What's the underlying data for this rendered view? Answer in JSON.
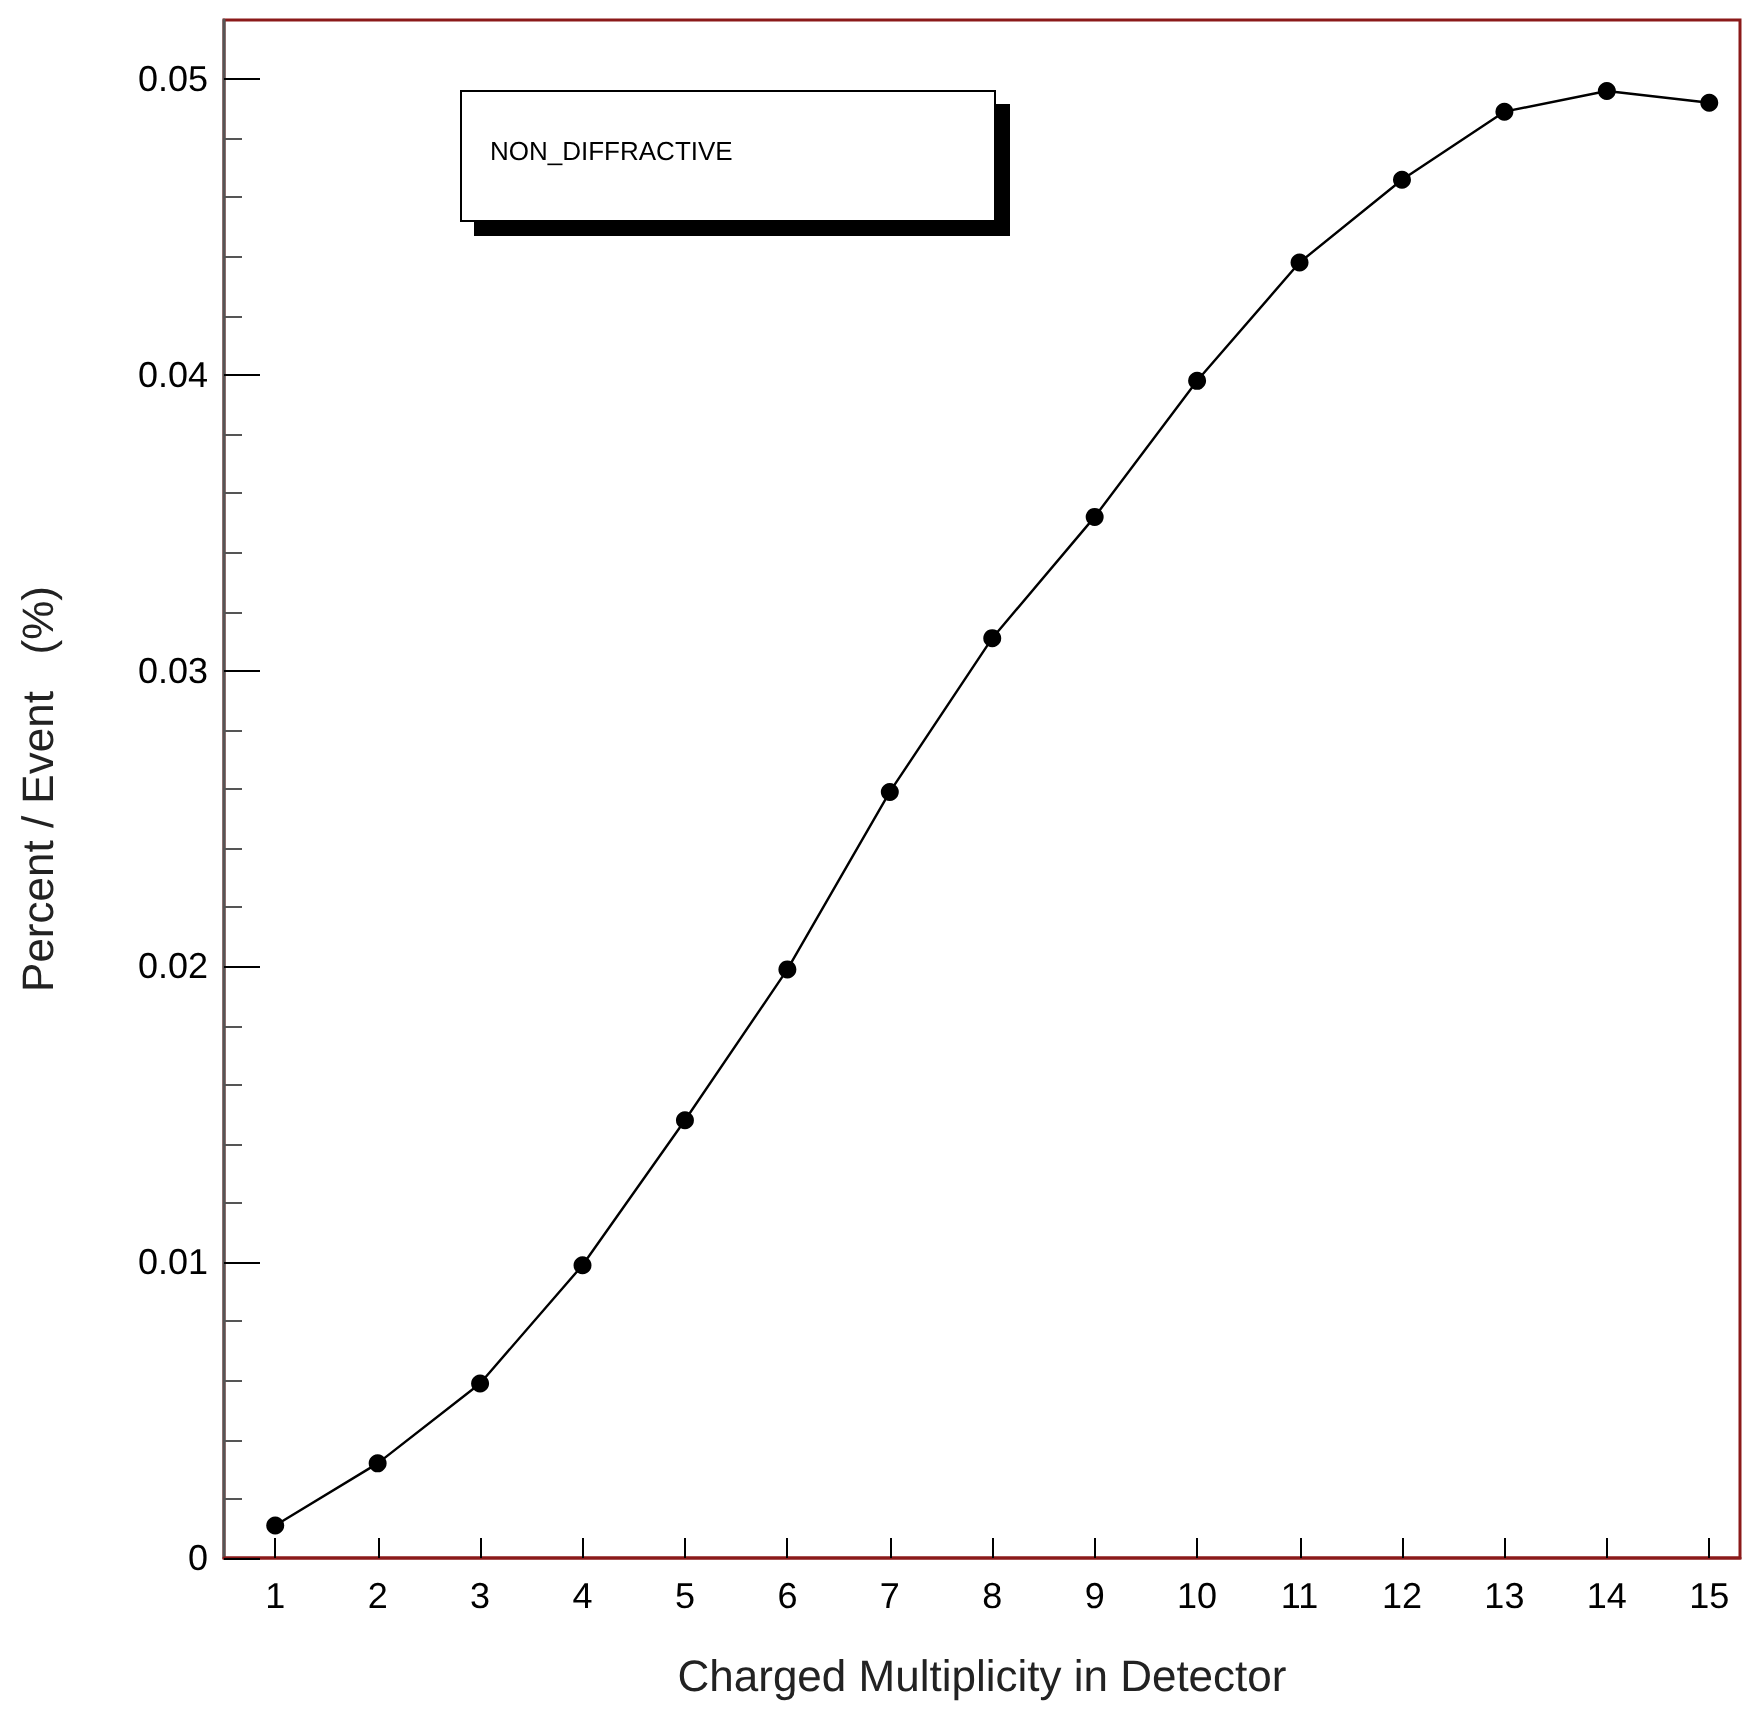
{
  "chart_data": {
    "type": "line",
    "xlabel": "Charged Multiplicity in Detector",
    "ylabel": "Percent / Event   (%)",
    "x": [
      1,
      2,
      3,
      4,
      5,
      6,
      7,
      8,
      9,
      10,
      11,
      12,
      13,
      14,
      15
    ],
    "series": [
      {
        "color": "#000000",
        "values": [
          0.0011,
          0.0032,
          0.0059,
          0.0099,
          0.0148,
          0.0199,
          0.0259,
          0.0311,
          0.0352,
          0.0398,
          0.0438,
          0.0466,
          0.0489,
          0.0496,
          0.0492
        ]
      }
    ],
    "xlim": [
      0.5,
      15.3
    ],
    "xticks": [
      1,
      2,
      3,
      4,
      5,
      6,
      7,
      8,
      9,
      10,
      11,
      12,
      13,
      14,
      15
    ],
    "ylim": [
      0,
      0.052
    ],
    "yticks": [
      0,
      0.01,
      0.02,
      0.03,
      0.04,
      0.05
    ],
    "annotations": [
      "NON_DIFFRACTIVE"
    ],
    "marker": "circle",
    "line_style": "solid",
    "grid": false
  }
}
